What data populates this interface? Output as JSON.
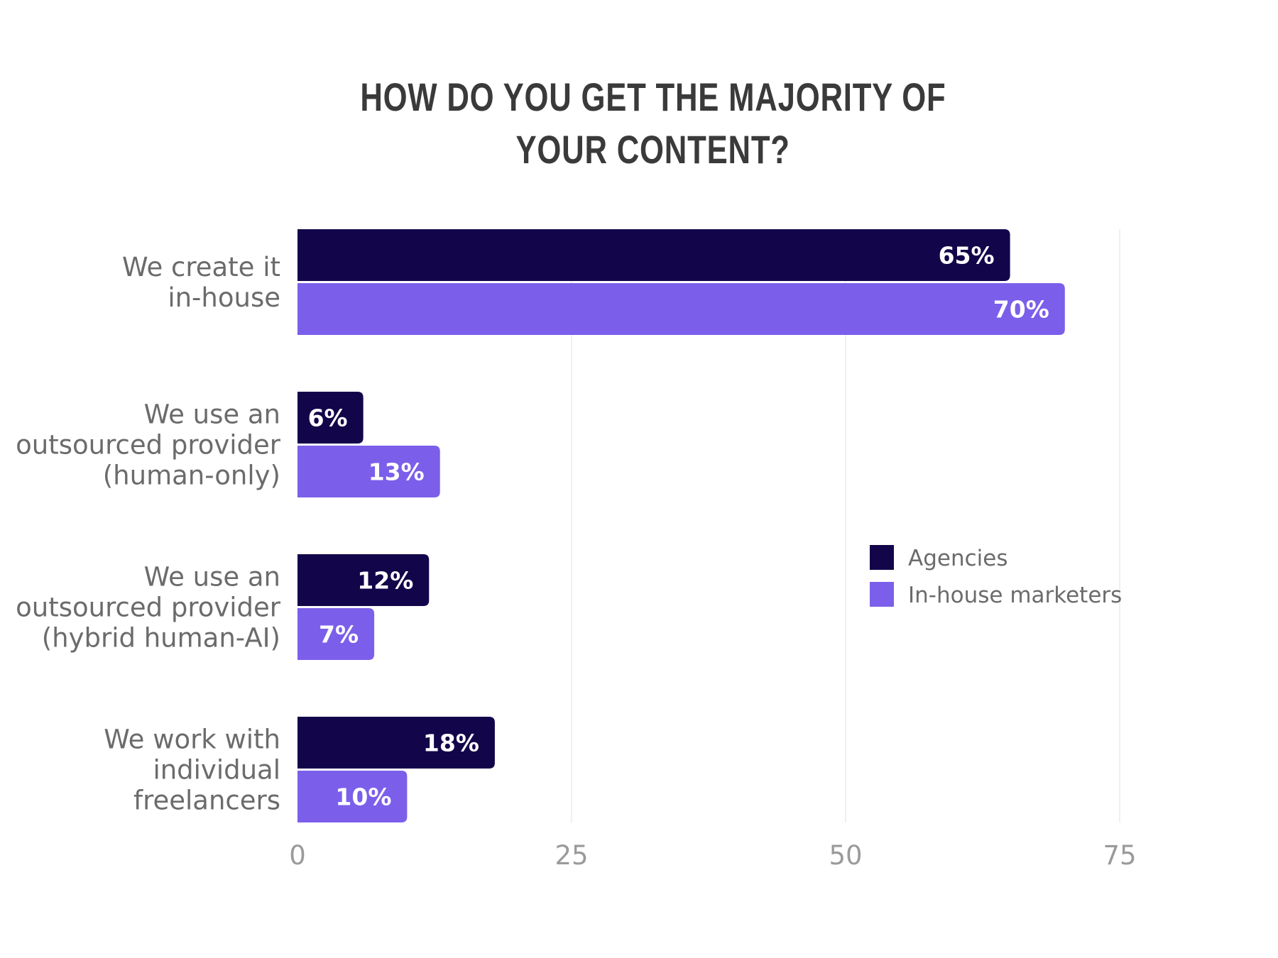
{
  "chart_data": {
    "type": "bar",
    "orientation": "horizontal",
    "title": "HOW DO YOU GET THE MAJORITY OF YOUR CONTENT?",
    "title_lines": [
      "HOW DO YOU GET THE MAJORITY OF",
      "YOUR CONTENT?"
    ],
    "categories": [
      [
        "We create it",
        "in-house"
      ],
      [
        "We use an",
        "outsourced provider",
        "(human-only)"
      ],
      [
        "We use an",
        "outsourced provider",
        "(hybrid human-AI)"
      ],
      [
        "We work with",
        "individual",
        "freelancers"
      ]
    ],
    "series": [
      {
        "name": "Agencies",
        "color": "#13054a",
        "values": [
          65,
          6,
          12,
          18
        ],
        "labels": [
          "65%",
          "6%",
          "12%",
          "18%"
        ]
      },
      {
        "name": "In-house marketers",
        "color": "#7b5fea",
        "values": [
          70,
          13,
          7,
          10
        ],
        "labels": [
          "70%",
          "13%",
          "7%",
          "10%"
        ]
      }
    ],
    "xlim": [
      0,
      75
    ],
    "xticks": [
      "0",
      "25",
      "50",
      "75"
    ],
    "grid": true,
    "legend_position": "right-middle",
    "xlabel": "",
    "ylabel": ""
  }
}
